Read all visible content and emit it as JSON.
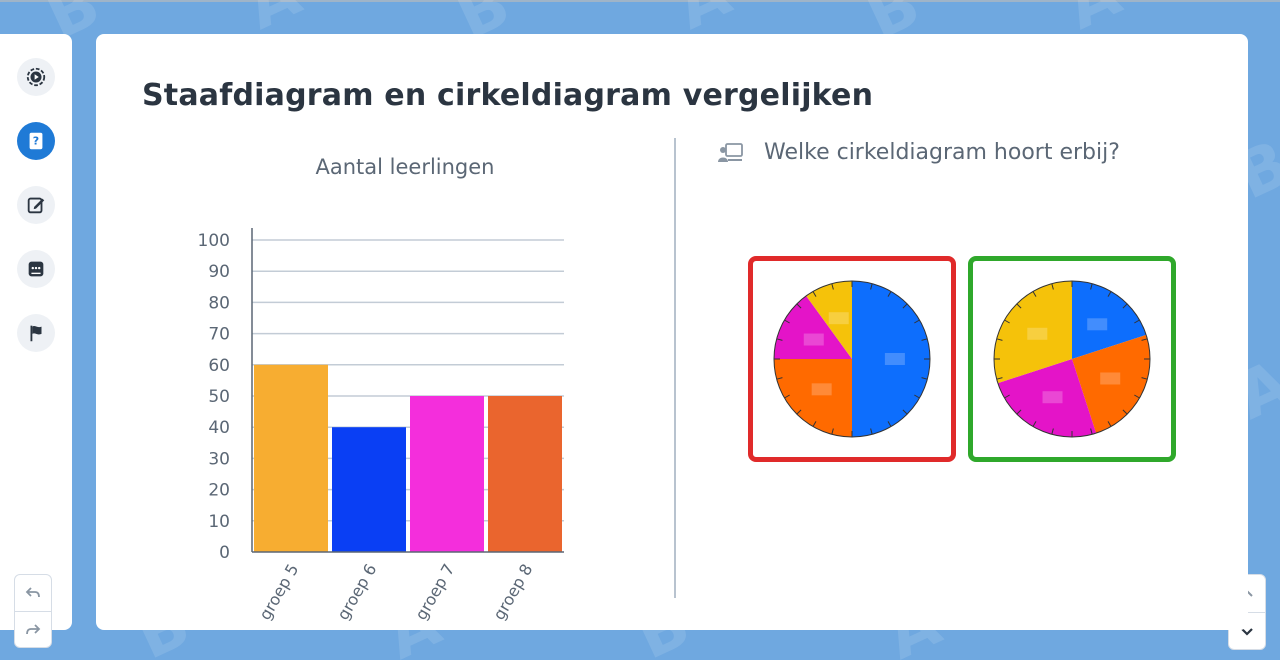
{
  "sidebar": {
    "items": [
      {
        "icon": "play-circle-icon",
        "active": false
      },
      {
        "icon": "question-book-icon",
        "active": true
      },
      {
        "icon": "edit-icon",
        "active": false
      },
      {
        "icon": "chat-icon",
        "active": false
      },
      {
        "icon": "flag-icon",
        "active": false
      }
    ]
  },
  "controls": {
    "undo_icon": "undo-icon",
    "redo_icon": "redo-icon",
    "prev_icon": "chevron-up-icon",
    "next_icon": "chevron-down-icon"
  },
  "slide": {
    "title": "Staafdiagram en cirkeldiagram vergelijken",
    "question": "Welke cirkeldiagram hoort erbij?",
    "question_icon": "presenter-icon"
  },
  "chart_data": {
    "type": "bar",
    "title": "Aantal leerlingen",
    "categories": [
      "groep 5",
      "groep 6",
      "groep 7",
      "groep 8"
    ],
    "values": [
      60,
      40,
      50,
      50
    ],
    "colors": [
      "#f7ad31",
      "#0a3ff4",
      "#f42edc",
      "#ea652e"
    ],
    "ylim": [
      0,
      100
    ],
    "yticks": [
      "0",
      "10",
      "20",
      "30",
      "40",
      "50",
      "60",
      "70",
      "80",
      "90",
      "100"
    ],
    "grid": true
  },
  "pie_options": [
    {
      "border_color": "#e02a2a",
      "slices": [
        {
          "value": 50,
          "color": "#0d6efd"
        },
        {
          "value": 25,
          "color": "#ff6a00"
        },
        {
          "value": 15,
          "color": "#e414c8"
        },
        {
          "value": 10,
          "color": "#f5c20a"
        }
      ]
    },
    {
      "border_color": "#2fa82b",
      "slices": [
        {
          "value": 20,
          "color": "#0d6efd"
        },
        {
          "value": 25,
          "color": "#ff6a00"
        },
        {
          "value": 25,
          "color": "#e414c8"
        },
        {
          "value": 30,
          "color": "#f5c20a"
        }
      ]
    }
  ]
}
